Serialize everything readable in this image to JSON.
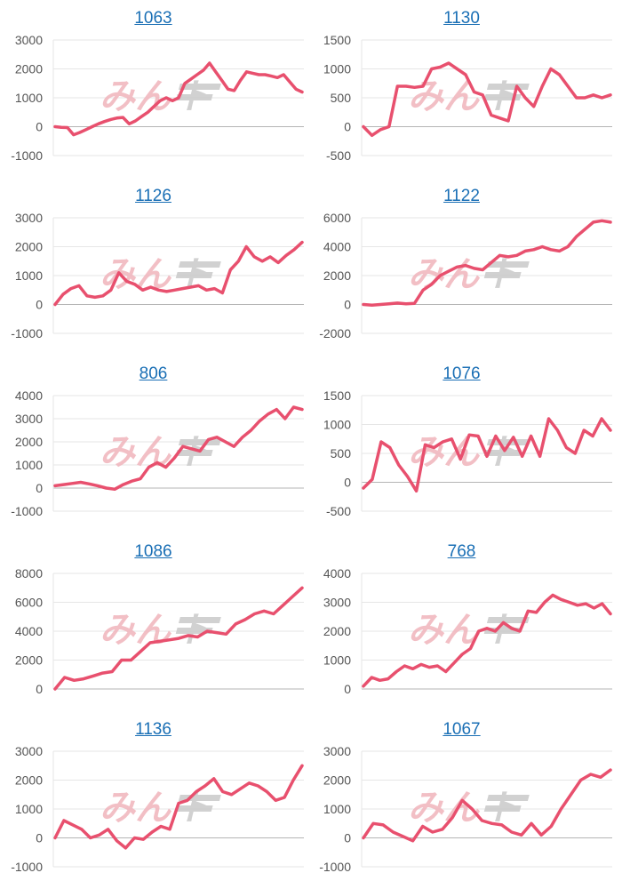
{
  "watermark": {
    "part1": "みん",
    "part2": "ト"
  },
  "colors": {
    "series": "#e8506e",
    "title": "#1a6fb5"
  },
  "chart_data": [
    {
      "type": "line",
      "title": "1063",
      "yticks": [
        "3000",
        "2000",
        "1000",
        "0",
        "-1000"
      ],
      "ylim": [
        -1000,
        3000
      ],
      "values": [
        0,
        -20,
        -30,
        -280,
        -200,
        -100,
        0,
        100,
        180,
        250,
        300,
        320,
        100,
        200,
        350,
        500,
        700,
        900,
        1000,
        900,
        1000,
        1500,
        1650,
        1800,
        1950,
        2200,
        1900,
        1600,
        1300,
        1250,
        1600,
        1900,
        1850,
        1800,
        1800,
        1750,
        1700,
        1800,
        1550,
        1300,
        1200
      ]
    },
    {
      "type": "line",
      "title": "1130",
      "yticks": [
        "1500",
        "1000",
        "500",
        "0",
        "-500"
      ],
      "ylim": [
        -500,
        1500
      ],
      "values": [
        0,
        -150,
        -50,
        0,
        700,
        700,
        680,
        700,
        1000,
        1030,
        1100,
        1000,
        900,
        600,
        550,
        200,
        150,
        100,
        700,
        500,
        350,
        700,
        1000,
        900,
        700,
        500,
        500,
        550,
        500,
        550
      ]
    },
    {
      "type": "line",
      "title": "1126",
      "yticks": [
        "3000",
        "2000",
        "1000",
        "0",
        "-1000"
      ],
      "ylim": [
        -1000,
        3000
      ],
      "values": [
        0,
        350,
        550,
        650,
        300,
        250,
        300,
        500,
        1100,
        800,
        700,
        500,
        600,
        500,
        450,
        500,
        550,
        600,
        650,
        500,
        550,
        400,
        1200,
        1500,
        2000,
        1650,
        1500,
        1650,
        1450,
        1700,
        1900,
        2150
      ]
    },
    {
      "type": "line",
      "title": "1122",
      "yticks": [
        "6000",
        "4000",
        "2000",
        "0",
        "-2000"
      ],
      "ylim": [
        -2000,
        6000
      ],
      "values": [
        0,
        -50,
        0,
        50,
        100,
        50,
        80,
        1000,
        1400,
        2000,
        2300,
        2600,
        2700,
        2500,
        2400,
        2900,
        3400,
        3300,
        3400,
        3700,
        3800,
        4000,
        3800,
        3700,
        4000,
        4700,
        5200,
        5700,
        5800,
        5700
      ]
    },
    {
      "type": "line",
      "title": "806",
      "yticks": [
        "4000",
        "3000",
        "2000",
        "1000",
        "0",
        "-1000"
      ],
      "ylim": [
        -1000,
        4000
      ],
      "values": [
        100,
        150,
        200,
        250,
        180,
        100,
        0,
        -50,
        150,
        300,
        400,
        900,
        1100,
        900,
        1300,
        1800,
        1700,
        1600,
        2100,
        2200,
        2000,
        1800,
        2200,
        2500,
        2900,
        3200,
        3400,
        3000,
        3500,
        3400
      ]
    },
    {
      "type": "line",
      "title": "1076",
      "yticks": [
        "1500",
        "1000",
        "500",
        "0",
        "-500"
      ],
      "ylim": [
        -500,
        1500
      ],
      "values": [
        -100,
        50,
        700,
        600,
        300,
        100,
        -150,
        650,
        600,
        700,
        750,
        400,
        820,
        800,
        450,
        800,
        550,
        780,
        450,
        800,
        450,
        1100,
        900,
        600,
        500,
        900,
        800,
        1100,
        900
      ]
    },
    {
      "type": "line",
      "title": "1086",
      "yticks": [
        "8000",
        "6000",
        "4000",
        "2000",
        "0"
      ],
      "ylim": [
        0,
        8000
      ],
      "values": [
        0,
        800,
        600,
        700,
        900,
        1100,
        1200,
        2000,
        2000,
        2600,
        3200,
        3300,
        3400,
        3500,
        3700,
        3600,
        4000,
        3900,
        3800,
        4500,
        4800,
        5200,
        5400,
        5200,
        5800,
        6400,
        7000
      ]
    },
    {
      "type": "line",
      "title": "768",
      "yticks": [
        "4000",
        "3000",
        "2000",
        "1000",
        "0"
      ],
      "ylim": [
        0,
        4000
      ],
      "values": [
        100,
        400,
        300,
        350,
        600,
        800,
        700,
        850,
        750,
        800,
        600,
        900,
        1200,
        1400,
        2000,
        2100,
        2000,
        2300,
        2100,
        2000,
        2700,
        2650,
        3000,
        3250,
        3100,
        3000,
        2900,
        2950,
        2800,
        2950,
        2600
      ]
    },
    {
      "type": "line",
      "title": "1136",
      "yticks": [
        "3000",
        "2000",
        "1000",
        "0",
        "-1000"
      ],
      "ylim": [
        -1000,
        3000
      ],
      "values": [
        0,
        600,
        450,
        300,
        0,
        100,
        300,
        -100,
        -350,
        0,
        -50,
        200,
        400,
        300,
        1200,
        1300,
        1600,
        1800,
        2050,
        1600,
        1500,
        1700,
        1900,
        1800,
        1600,
        1300,
        1400,
        2000,
        2500
      ]
    },
    {
      "type": "line",
      "title": "1067",
      "yticks": [
        "3000",
        "2000",
        "1000",
        "0",
        "-1000"
      ],
      "ylim": [
        -1000,
        3000
      ],
      "values": [
        0,
        500,
        450,
        200,
        50,
        -100,
        400,
        200,
        300,
        700,
        1300,
        1000,
        600,
        500,
        450,
        200,
        100,
        500,
        100,
        400,
        1000,
        1500,
        2000,
        2200,
        2100,
        2350
      ]
    }
  ]
}
